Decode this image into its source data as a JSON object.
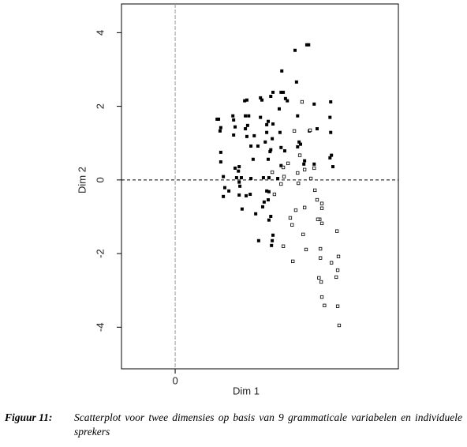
{
  "chart_data": {
    "type": "scatter",
    "x_label": "Dim 1",
    "y_label": "Dim 2",
    "xlim": [
      -1.46,
      6.07
    ],
    "ylim": [
      -5.13,
      4.78
    ],
    "xticks": [
      0
    ],
    "yticks": [
      -4,
      -2,
      0,
      2,
      4
    ],
    "zero_lines": true,
    "series": [
      {
        "marker": "filled",
        "color": "#000000",
        "x": [
          3.63,
          3.58,
          3.26,
          2.9,
          3.3,
          2.66,
          2.88,
          2.94,
          2.32,
          2.36,
          3.0,
          2.6,
          3.05,
          1.89,
          1.95,
          4.23,
          3.78,
          1.57,
          1.91,
          2.0,
          2.32,
          2.83,
          3.33,
          4.21,
          1.18,
          1.14,
          1.59,
          1.24,
          1.63,
          1.97,
          1.91,
          2.49,
          2.53,
          2.66,
          3.86,
          3.65,
          4.23,
          1.22,
          1.59,
          1.95,
          2.15,
          2.49,
          2.85,
          2.64,
          2.45,
          3.37,
          3.41,
          3.33,
          2.25,
          2.06,
          2.88,
          2.6,
          2.58,
          2.98,
          4.25,
          4.21,
          1.24,
          1.24,
          2.12,
          2.53,
          3.52,
          3.5,
          3.78,
          4.29,
          1.74,
          1.63,
          2.88,
          1.72,
          1.31,
          1.67,
          1.8,
          2.55,
          2.06,
          2.4,
          2.79,
          1.35,
          1.74,
          1.76,
          1.46,
          1.31,
          1.93,
          2.49,
          2.55,
          1.74,
          2.04,
          2.53,
          2.42,
          2.38,
          1.82,
          2.19,
          2.6,
          2.55,
          2.27,
          2.66,
          2.64,
          2.62
        ],
        "values": [
          3.67,
          3.67,
          3.52,
          2.96,
          2.66,
          2.38,
          2.38,
          2.38,
          2.23,
          2.17,
          2.21,
          2.27,
          2.15,
          2.15,
          2.17,
          2.12,
          2.06,
          1.74,
          1.74,
          1.74,
          1.7,
          1.93,
          1.74,
          1.7,
          1.65,
          1.65,
          1.63,
          1.42,
          1.44,
          1.48,
          1.39,
          1.5,
          1.59,
          1.52,
          1.39,
          1.33,
          1.29,
          1.33,
          1.22,
          1.18,
          1.2,
          1.29,
          1.29,
          1.12,
          1.03,
          1.03,
          0.97,
          0.9,
          0.92,
          0.92,
          0.88,
          0.82,
          0.77,
          0.79,
          0.67,
          0.6,
          0.75,
          0.49,
          0.56,
          0.56,
          0.52,
          0.43,
          0.43,
          0.36,
          0.36,
          0.32,
          0.39,
          0.24,
          0.09,
          0.06,
          0.06,
          0.06,
          0.04,
          0.06,
          0.04,
          -0.21,
          -0.06,
          -0.17,
          -0.3,
          -0.45,
          -0.43,
          -0.3,
          -0.32,
          -0.41,
          -0.39,
          -0.54,
          -0.6,
          -0.73,
          -0.79,
          -0.92,
          -0.99,
          -1.09,
          -1.65,
          -1.5,
          -1.65,
          -1.78
        ]
      },
      {
        "marker": "open",
        "color": "#000000",
        "x": [
          3.45,
          3.24,
          3.67,
          3.39,
          3.07,
          2.94,
          2.64,
          3.33,
          3.52,
          3.78,
          2.96,
          3.69,
          3.35,
          2.88,
          2.7,
          3.8,
          3.86,
          3.99,
          3.99,
          3.52,
          3.28,
          3.13,
          3.93,
          3.99,
          3.88,
          3.18,
          3.48,
          4.4,
          2.94,
          3.56,
          3.95,
          3.2,
          3.95,
          4.44,
          4.25,
          4.42,
          4.38,
          3.91,
          3.97,
          3.99,
          4.06,
          4.42,
          4.46
        ],
        "values": [
          2.12,
          1.33,
          1.35,
          0.67,
          0.45,
          0.34,
          0.21,
          0.19,
          0.28,
          0.32,
          0.09,
          0.04,
          -0.09,
          -0.11,
          -0.39,
          -0.28,
          -0.54,
          -0.64,
          -0.77,
          -0.75,
          -0.82,
          -1.03,
          -1.07,
          -1.18,
          -1.07,
          -1.22,
          -1.48,
          -1.39,
          -1.8,
          -1.89,
          -1.87,
          -2.21,
          -2.12,
          -2.08,
          -2.25,
          -2.45,
          -2.64,
          -2.66,
          -2.77,
          -3.18,
          -3.41,
          -3.43,
          -3.95
        ]
      }
    ]
  },
  "caption": {
    "label": "Figuur 11:",
    "text": "Scatterplot voor twee dimensies op basis van 9 grammaticale variabelen en individuele sprekers"
  }
}
